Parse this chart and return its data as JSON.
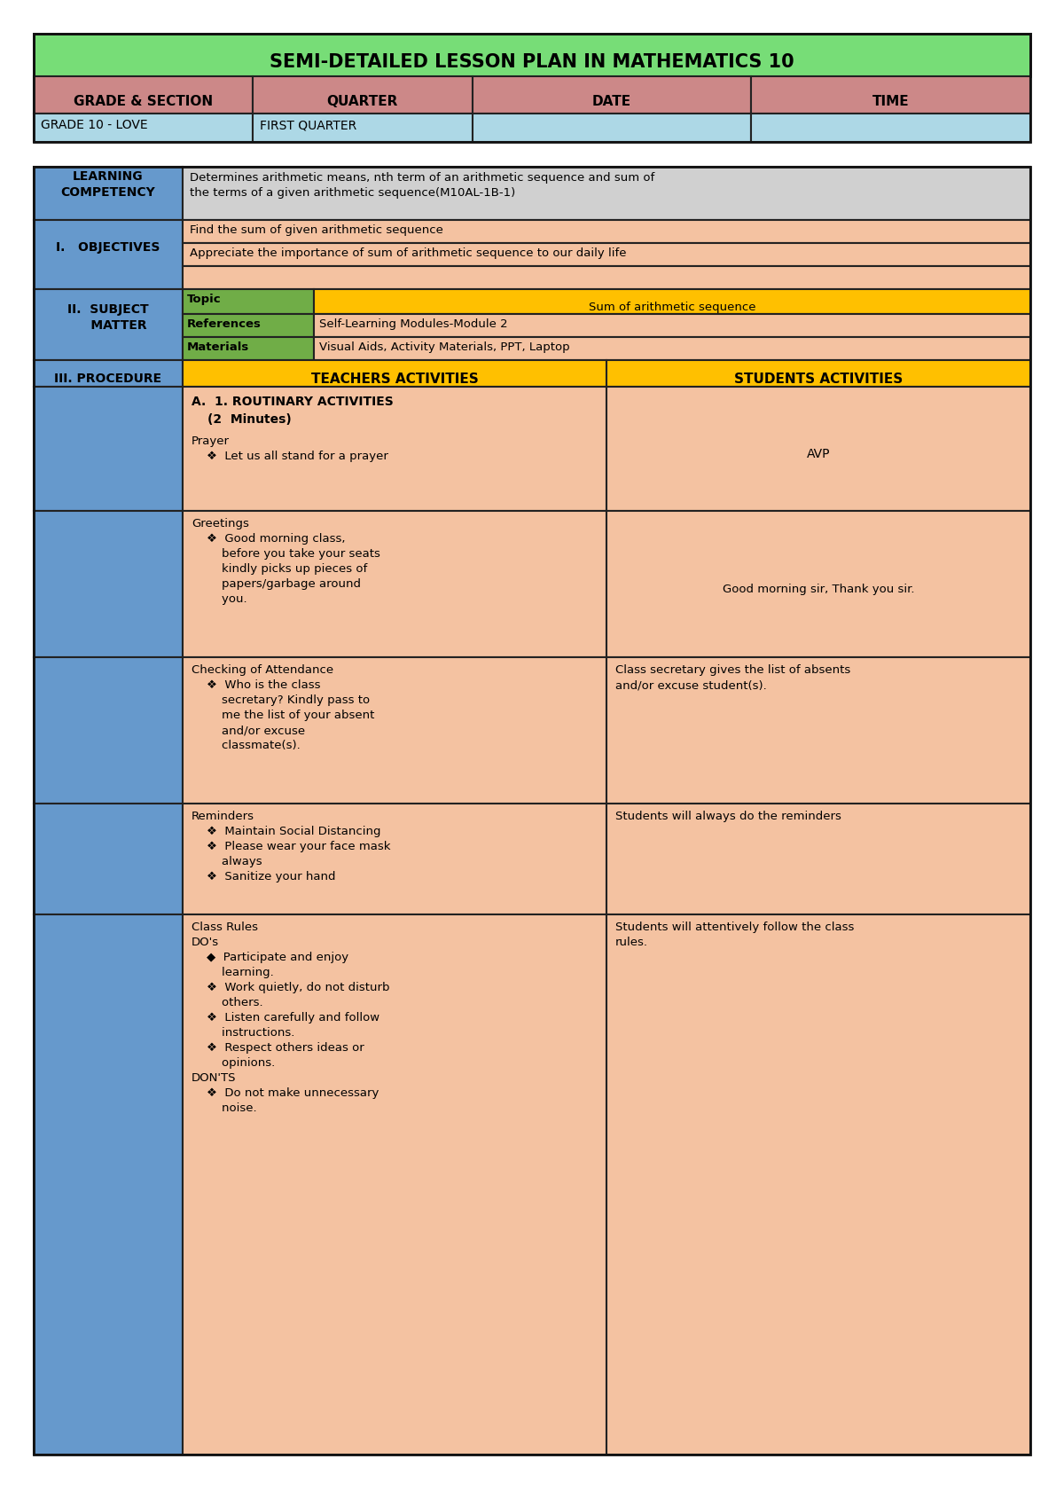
{
  "title": "SEMI-DETAILED LESSON PLAN IN MATHEMATICS 10",
  "title_bg": "#77dd77",
  "title_color": "#000000",
  "header_row": [
    "GRADE & SECTION",
    "QUARTER",
    "DATE",
    "TIME"
  ],
  "header_bg": "#cc8888",
  "data_row": [
    "GRADE 10 - LOVE",
    "FIRST QUARTER",
    "",
    ""
  ],
  "data_row_bg": "#add8e6",
  "yellow_bg": "#ffc000",
  "green_bg": "#70ad47",
  "blue_bg": "#6699cc",
  "grey_bg": "#d3d3d3",
  "peach_bg": "#f4c2a1",
  "lc_right_bg": "#d0d0d0",
  "learning_competency_text": "Determines arithmetic means, nth term of an arithmetic sequence and sum of\nthe terms of a given arithmetic sequence(M10AL-1B-1)",
  "obj1": "Find the sum of given arithmetic sequence",
  "obj2": "Appreciate the importance of sum of arithmetic sequence to our daily life",
  "topic_value": "Sum of arithmetic sequence",
  "references_value": "Self-Learning Modules-Module 2",
  "materials_value": "Visual Aids, Activity Materials, PPT, Laptop",
  "routinary_title_line1": "A.  1. ROUTINARY ACTIVITIES",
  "routinary_title_line2": "(2  Minutes)",
  "prayer_text": "Prayer\n    ❖  Let us all stand for a prayer",
  "avp_text": "AVP",
  "greetings_teacher": "Greetings\n    ❖  Good morning class,\n        before you take your seats\n        kindly picks up pieces of\n        papers/garbage around\n        you.",
  "greetings_student": "Good morning sir, Thank you sir.",
  "attendance_teacher": "Checking of Attendance\n    ❖  Who is the class\n        secretary? Kindly pass to\n        me the list of your absent\n        and/or excuse\n        classmate(s).",
  "attendance_student": "Class secretary gives the list of absents\nand/or excuse student(s).",
  "reminders_teacher": "Reminders\n    ❖  Maintain Social Distancing\n    ❖  Please wear your face mask\n        always\n    ❖  Sanitize your hand",
  "reminders_student": "Students will always do the reminders",
  "class_rules_teacher": "Class Rules\nDO's\n    ◆  Participate and enjoy\n        learning.\n    ❖  Work quietly, do not disturb\n        others.\n    ❖  Listen carefully and follow\n        instructions.\n    ❖  Respect others ideas or\n        opinions.\nDON'TS\n    ❖  Do not make unnecessary\n        noise.",
  "class_rules_student": "Students will attentively follow the class\nrules."
}
